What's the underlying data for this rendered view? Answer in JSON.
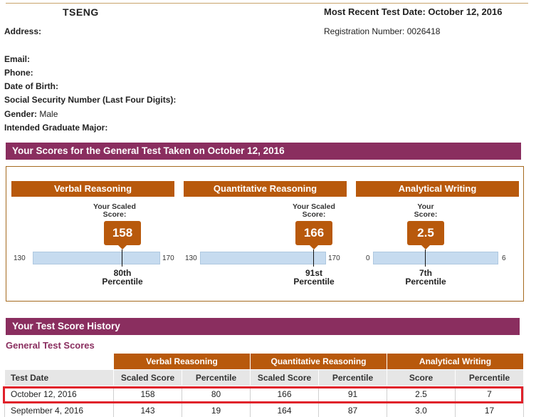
{
  "header": {
    "name": "TSENG",
    "recent_test": "Most Recent Test Date: October 12, 2016",
    "registration": "Registration Number: 0026418"
  },
  "profile": {
    "address_label": "Address:",
    "email_label": "Email:",
    "phone_label": "Phone:",
    "dob_label": "Date of Birth:",
    "ssn_label": "Social Security Number (Last Four Digits):",
    "gender_label": "Gender:",
    "gender_value": "Male",
    "major_label": "Intended Graduate Major:"
  },
  "scores_banner": "Your Scores for the General Test Taken on October 12, 2016",
  "panels": [
    {
      "title": "Verbal Reasoning",
      "your_label_1": "Your Scaled",
      "your_label_2": "Score:",
      "score": "158",
      "min": "130",
      "max": "170",
      "percentile_1": "80th",
      "percentile_2": "Percentile",
      "level": 0.7
    },
    {
      "title": "Quantitative Reasoning",
      "your_label_1": "Your Scaled",
      "your_label_2": "Score:",
      "score": "166",
      "min": "130",
      "max": "170",
      "percentile_1": "91st",
      "percentile_2": "Percentile",
      "level": 0.9
    },
    {
      "title": "Analytical Writing",
      "your_label_1": "Your",
      "your_label_2": "Score:",
      "score": "2.5",
      "min": "0",
      "max": "6",
      "percentile_1": "7th",
      "percentile_2": "Percentile",
      "level": 0.4167
    }
  ],
  "history_banner": "Your Test Score History",
  "general_title": "General Test Scores",
  "table": {
    "groups": [
      "Verbal Reasoning",
      "Quantitative Reasoning",
      "Analytical Writing"
    ],
    "columns": [
      "Test Date",
      "Scaled Score",
      "Percentile",
      "Scaled Score",
      "Percentile",
      "Score",
      "Percentile"
    ],
    "rows": [
      [
        "October 12, 2016",
        "158",
        "80",
        "166",
        "91",
        "2.5",
        "7"
      ],
      [
        "September 4, 2016",
        "143",
        "19",
        "164",
        "87",
        "3.0",
        "17"
      ]
    ]
  },
  "colors": {
    "banner": "#8a2e5f",
    "accent": "#b8590c",
    "bar": "#c6dbef",
    "highlight": "#e0202a"
  }
}
